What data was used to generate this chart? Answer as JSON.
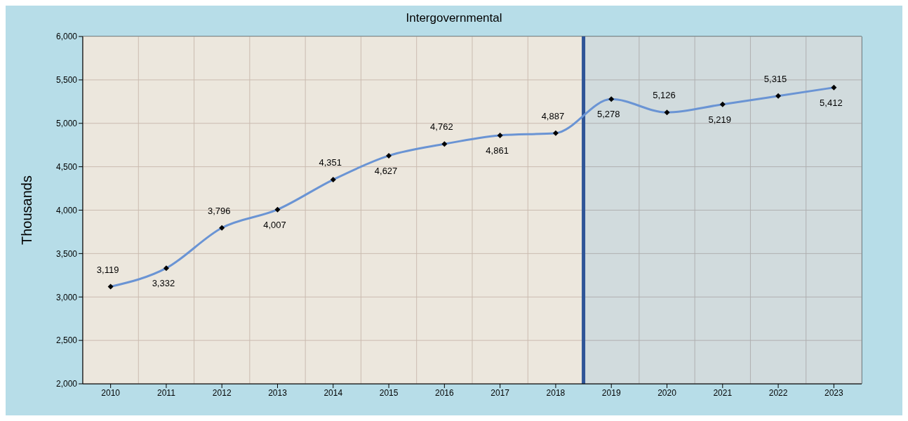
{
  "chart_data": {
    "type": "line",
    "title": "Intergovernmental",
    "ylabel": "Thousands",
    "x": [
      2010,
      2011,
      2012,
      2013,
      2014,
      2015,
      2016,
      2017,
      2018,
      2019,
      2020,
      2021,
      2022,
      2023
    ],
    "series": [
      {
        "color": "#6a94d4",
        "values": [
          3119,
          3332,
          3796,
          4007,
          4351,
          4627,
          4762,
          4861,
          4887,
          5278,
          5126,
          5219,
          5315,
          5412
        ],
        "value_labels": [
          "3,119",
          "3,332",
          "3,796",
          "4,007",
          "4,351",
          "4,627",
          "4,762",
          "4,861",
          "4,887",
          "5,278",
          "5,126",
          "5,219",
          "5,315",
          "5,412"
        ]
      }
    ],
    "xlim": [
      2009.5,
      2023.5
    ],
    "xticks": [
      2010,
      2011,
      2012,
      2013,
      2014,
      2015,
      2016,
      2017,
      2018,
      2019,
      2020,
      2021,
      2022,
      2023
    ],
    "ylim": [
      2000,
      6000
    ],
    "yticks": [
      {
        "value": 2000,
        "label": "2,000"
      },
      {
        "value": 2500,
        "label": "2,500"
      },
      {
        "value": 3000,
        "label": "3,000"
      },
      {
        "value": 3500,
        "label": "3,500"
      },
      {
        "value": 4000,
        "label": "4,000"
      },
      {
        "value": 4500,
        "label": "4,500"
      },
      {
        "value": 5000,
        "label": "5,000"
      },
      {
        "value": 5500,
        "label": "5,500"
      },
      {
        "value": 6000,
        "label": "6,000"
      }
    ],
    "bands": [
      {
        "axis": "x",
        "from": 2009.5,
        "to": 2018.5,
        "color": "#fde9d9"
      },
      {
        "axis": "x",
        "from": 2018.5,
        "to": 2023.5,
        "color": "#d9d9d9"
      }
    ],
    "ref_lines": [
      {
        "axis": "x",
        "value": 2018.5,
        "color": "#2f5597"
      }
    ],
    "grid": true,
    "marker": "diamond",
    "line_style": "solid"
  }
}
